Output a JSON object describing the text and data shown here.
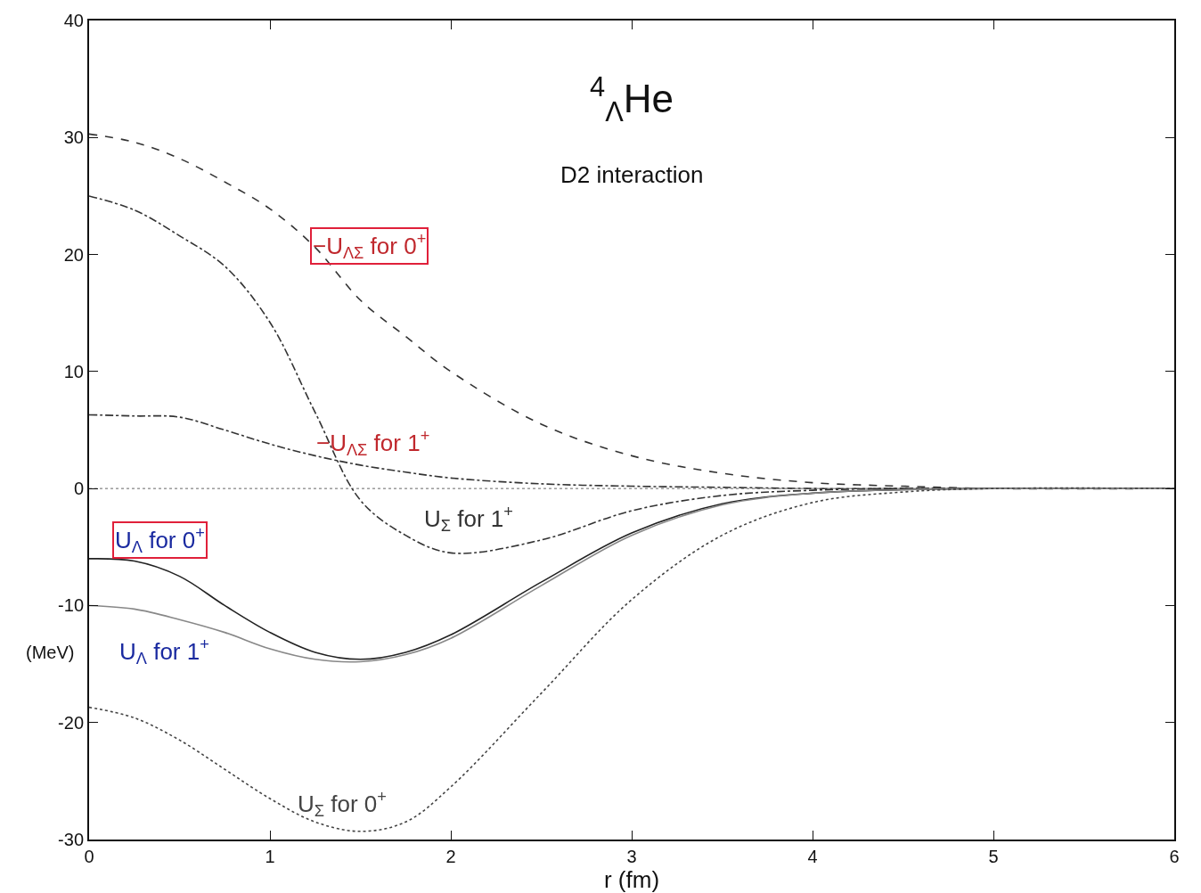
{
  "chart_data": {
    "type": "line",
    "title": "$^{4}$$_{Λ}$He",
    "subtitle": "D2 interaction",
    "xlabel": "r (fm)",
    "ylabel": "(MeV)",
    "x": [
      0,
      0.25,
      0.5,
      0.75,
      1,
      1.25,
      1.5,
      1.75,
      2,
      2.5,
      3,
      3.5,
      4,
      4.5,
      5,
      6
    ],
    "series": [
      {
        "name": "−U$_{ΛΣ}$ for 0$^{+}$",
        "color": "#333333",
        "line_style": "dashed",
        "values": [
          30.3,
          29.6,
          28.2,
          26.2,
          23.9,
          20.6,
          16.1,
          13.0,
          10.0,
          5.5,
          2.8,
          1.3,
          0.5,
          0.2,
          0,
          0
        ]
      },
      {
        "name": "U$_{Σ}$ for 1$^{+}$",
        "color": "#333333",
        "line_style": "dashdot",
        "values": [
          25.0,
          23.8,
          21.6,
          19.0,
          14.2,
          6.5,
          -1.0,
          -4.0,
          -5.5,
          -4.4,
          -1.9,
          -0.6,
          -0.15,
          0,
          0,
          0
        ]
      },
      {
        "name": "−U$_{ΛΣ}$ for 1$^{+}$",
        "color": "#333333",
        "line_style": "dashdot",
        "values": [
          6.3,
          6.2,
          6.1,
          5.0,
          3.8,
          2.8,
          2.0,
          1.4,
          0.9,
          0.4,
          0.2,
          0.1,
          0,
          0,
          0,
          0
        ]
      },
      {
        "name": "U$_{Λ}$ for 0$^{+}$",
        "color": "#222222",
        "line_style": "solid",
        "values": [
          -6.0,
          -6.2,
          -7.5,
          -10.0,
          -12.3,
          -14.0,
          -14.6,
          -14.0,
          -12.5,
          -8.0,
          -3.8,
          -1.3,
          -0.4,
          -0.1,
          0,
          0
        ]
      },
      {
        "name": "U$_{Λ}$ for 1$^{+}$",
        "color": "#888888",
        "line_style": "solid",
        "values": [
          -10.0,
          -10.3,
          -11.2,
          -12.3,
          -13.7,
          -14.6,
          -14.8,
          -14.2,
          -12.8,
          -8.3,
          -4.0,
          -1.4,
          -0.4,
          -0.1,
          0,
          0
        ]
      },
      {
        "name": "U$_{Σ}$ for 0$^{+}$",
        "color": "#444444",
        "line_style": "dotted",
        "values": [
          -18.7,
          -19.6,
          -21.5,
          -24.0,
          -26.5,
          -28.5,
          -29.3,
          -28.5,
          -25.5,
          -17.5,
          -9.5,
          -4.0,
          -1.2,
          -0.3,
          0,
          0
        ]
      }
    ],
    "ref_lines": [
      {
        "axis": "y",
        "value": 0,
        "color": "#666666",
        "line_style": "dotted"
      }
    ],
    "xlim": [
      0,
      6
    ],
    "xticks": [
      0,
      1,
      2,
      3,
      4,
      5,
      6
    ],
    "ylim": [
      -30,
      40
    ],
    "yticks": [
      -30,
      -20,
      -10,
      0,
      10,
      20,
      30,
      40
    ],
    "grid": false,
    "legend": false,
    "marker": "none"
  }
}
